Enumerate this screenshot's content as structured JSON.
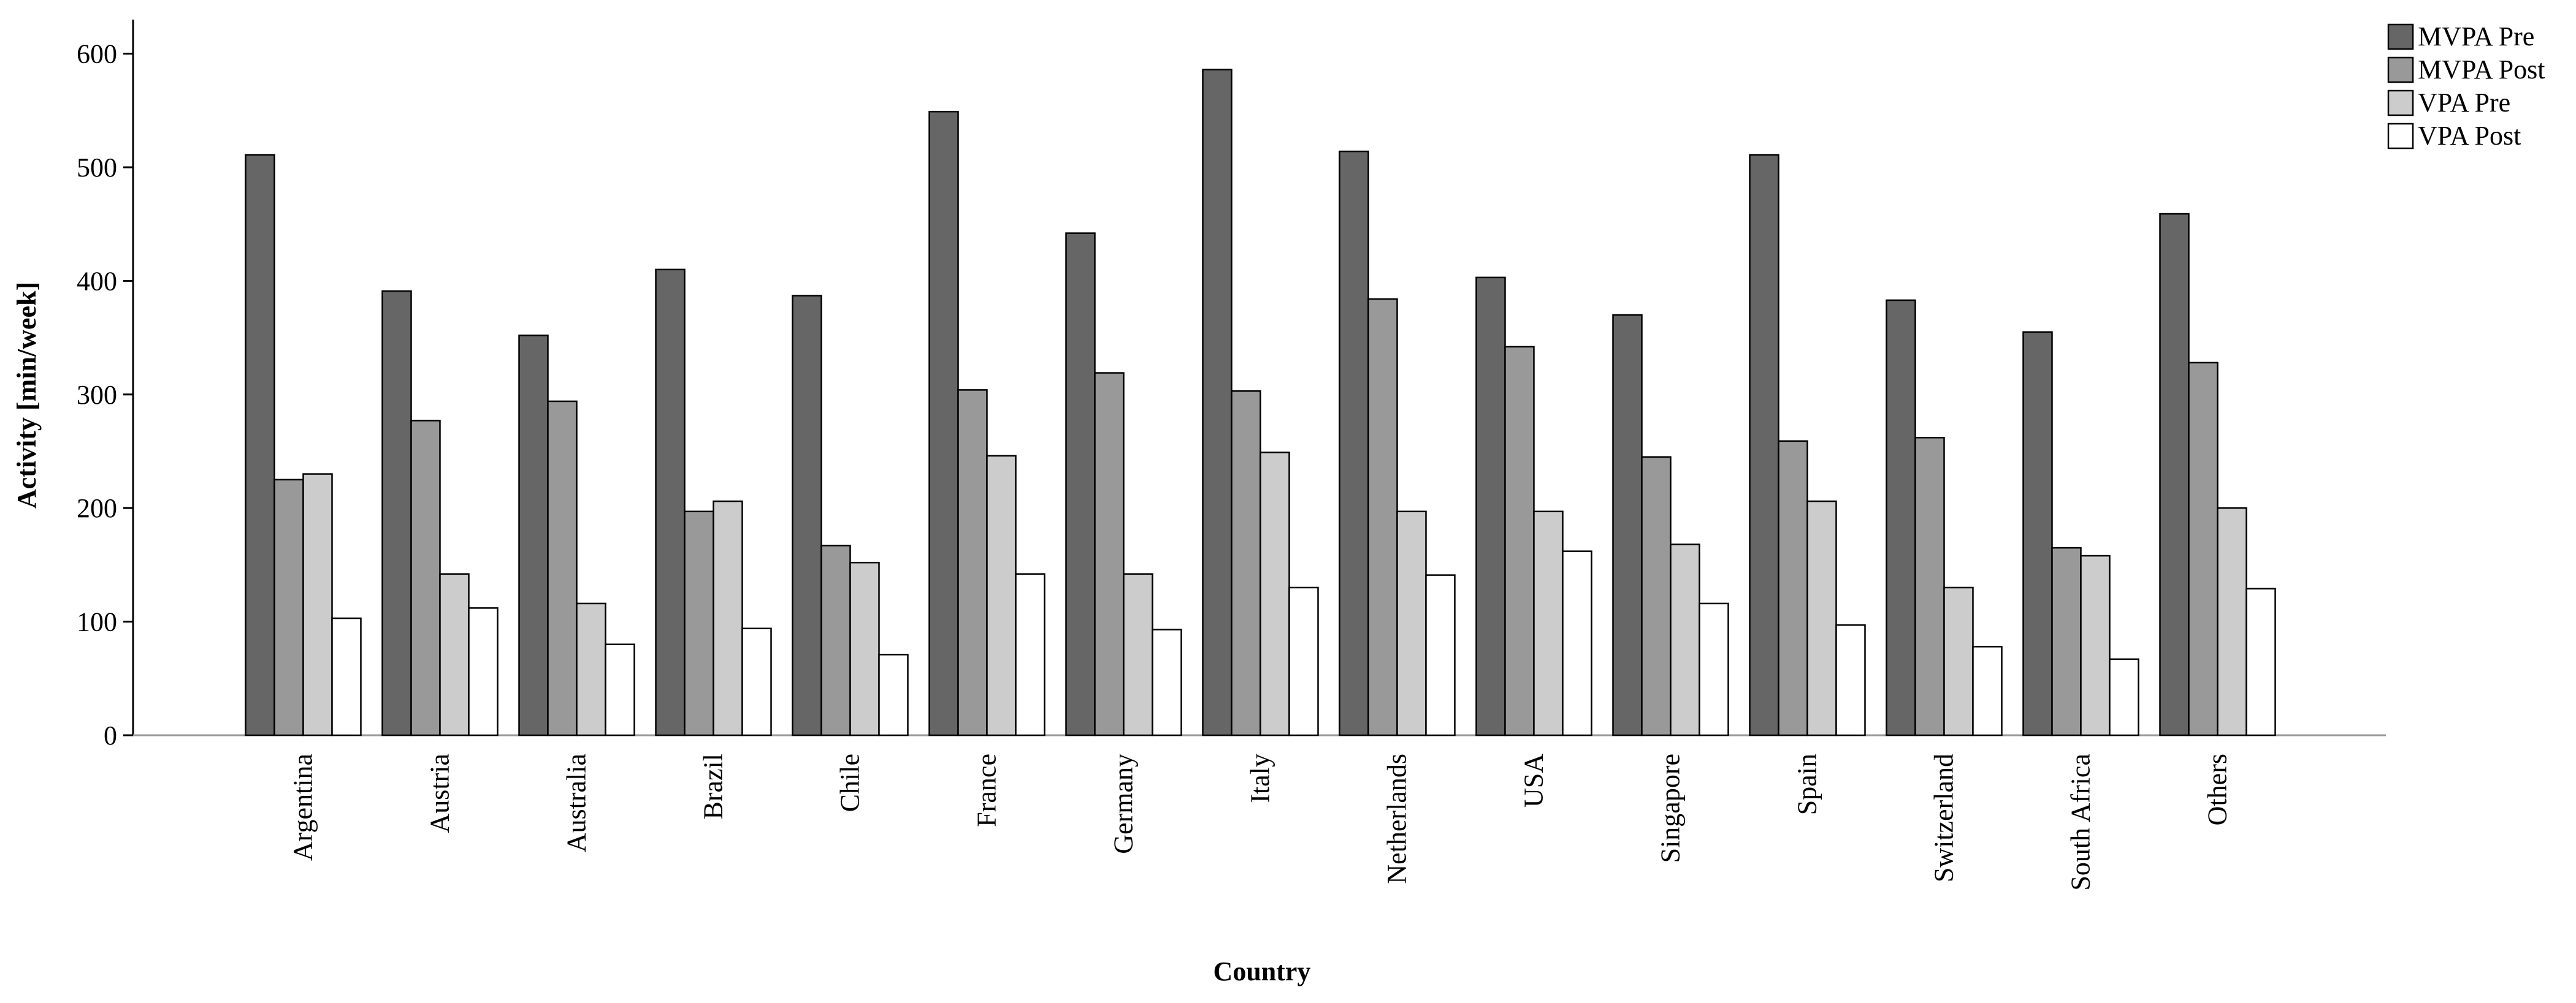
{
  "chart_data": {
    "type": "bar",
    "x_label": "Country",
    "y_label": "Activity [min/week]",
    "categories": [
      "Argentina",
      "Austria",
      "Australia",
      "Brazil",
      "Chile",
      "France",
      "Germany",
      "Italy",
      "Netherlands",
      "USA",
      "Singapore",
      "Spain",
      "Switzerland",
      "South Africa",
      "Others"
    ],
    "series": [
      {
        "name": "MVPA Pre",
        "color": "#666666",
        "values": [
          511,
          391,
          352,
          410,
          387,
          549,
          442,
          586,
          514,
          403,
          370,
          511,
          383,
          355,
          459
        ]
      },
      {
        "name": "MVPA Post",
        "color": "#999999",
        "values": [
          225,
          277,
          294,
          197,
          167,
          304,
          319,
          303,
          384,
          342,
          245,
          259,
          262,
          165,
          328
        ]
      },
      {
        "name": "VPA Pre",
        "color": "#cccccc",
        "values": [
          230,
          142,
          116,
          206,
          152,
          246,
          142,
          249,
          197,
          197,
          168,
          206,
          130,
          158,
          200
        ]
      },
      {
        "name": "VPA Post",
        "color": "#ffffff",
        "values": [
          103,
          112,
          80,
          94,
          71,
          142,
          93,
          130,
          141,
          162,
          116,
          97,
          78,
          67,
          129
        ]
      }
    ],
    "ylim": [
      0,
      630
    ],
    "yticks": [
      0,
      100,
      200,
      300,
      400,
      500,
      600
    ],
    "grid": false,
    "legend": "top-right"
  }
}
